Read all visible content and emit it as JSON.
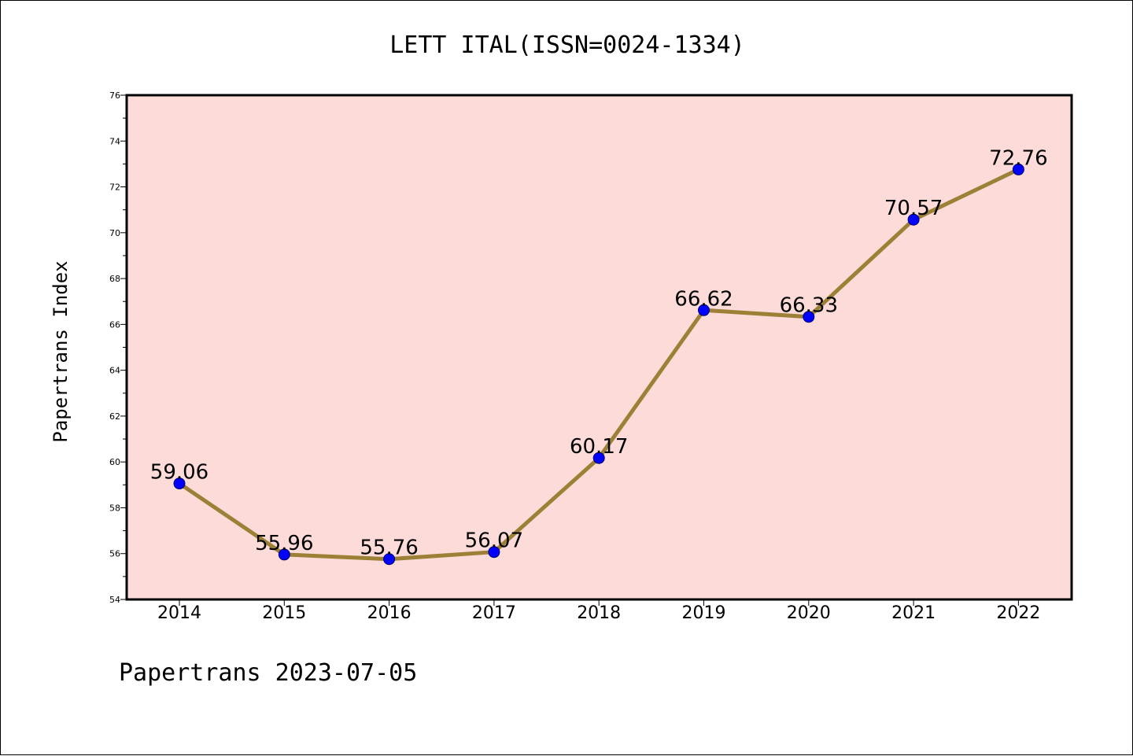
{
  "chart_data": {
    "type": "line",
    "title": "LETT ITAL(ISSN=0024-1334)",
    "xlabel": "",
    "ylabel": "Papertrans Index",
    "footer": "Papertrans 2023-07-05",
    "categories": [
      "2014",
      "2015",
      "2016",
      "2017",
      "2018",
      "2019",
      "2020",
      "2021",
      "2022"
    ],
    "values": [
      59.06,
      55.96,
      55.76,
      56.07,
      60.17,
      66.62,
      66.33,
      70.57,
      72.76
    ],
    "data_labels": [
      "59.06",
      "55.96",
      "55.76",
      "56.07",
      "60.17",
      "66.62",
      "66.33",
      "70.57",
      "72.76"
    ],
    "ylim": [
      54,
      76
    ],
    "yticks": [
      54,
      56,
      58,
      60,
      62,
      64,
      66,
      68,
      70,
      72,
      74,
      76
    ],
    "ytick_labels": [
      "54",
      "56",
      "58",
      "60",
      "62",
      "64",
      "66",
      "68",
      "70",
      "72",
      "74",
      "76"
    ],
    "grid": false,
    "colors": {
      "plot_background": "#fddbd9",
      "line": "#9b8036",
      "marker": "#0000ff"
    }
  }
}
